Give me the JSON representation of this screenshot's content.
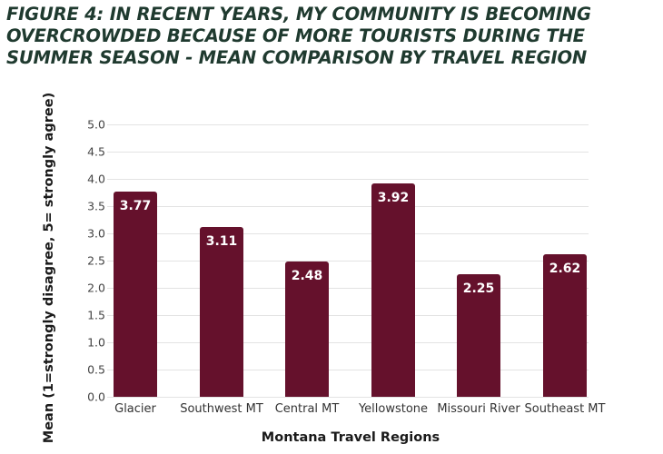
{
  "chart_data": {
    "type": "bar",
    "title": "FIGURE 4: IN RECENT YEARS, MY COMMUNITY IS BECOMING\nOVERCROWDED BECAUSE OF MORE TOURISTS DURING THE\nSUMMER SEASON - MEAN COMPARISON BY TRAVEL REGION",
    "xlabel": "Montana Travel Regions",
    "ylabel": "Mean (1=strongly disagree, 5= strongly agree)",
    "categories": [
      "Glacier",
      "Southwest MT",
      "Central MT",
      "Yellowstone",
      "Missouri River",
      "Southeast MT"
    ],
    "values": [
      3.77,
      3.11,
      2.48,
      3.92,
      2.25,
      2.62
    ],
    "value_labels": [
      "3.77",
      "3.11",
      "2.48",
      "3.92",
      "2.25",
      "2.62"
    ],
    "yticks": [
      "0.0",
      "0.5",
      "1.0",
      "1.5",
      "2.0",
      "2.5",
      "3.0",
      "3.5",
      "4.0",
      "4.5",
      "5.0"
    ],
    "ylim": [
      0,
      5
    ],
    "grid": true,
    "legend": null,
    "colors": {
      "bar": "#65112c",
      "title": "#1f3a2f",
      "grid": "#e3e3e3",
      "value_label": "#ffffff"
    }
  }
}
